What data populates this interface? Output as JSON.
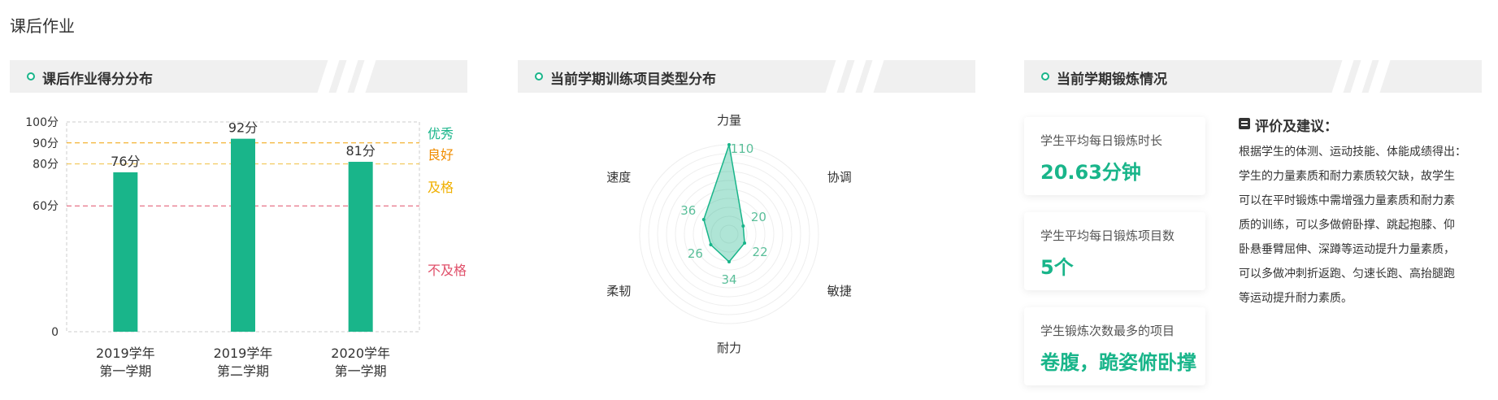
{
  "page": {
    "title": "课后作业"
  },
  "panels": [
    {
      "title": "课后作业得分分布"
    },
    {
      "title": "当前学期训练项目类型分布"
    },
    {
      "title": "当前学期锻炼情况"
    }
  ],
  "colors": {
    "primary": "#19b58a",
    "excellent": "#19b58a",
    "good": "#f08c00",
    "pass": "#f0b000",
    "fail": "#e0506a"
  },
  "chart_data": [
    {
      "type": "bar",
      "categories": [
        [
          "2019学年",
          "第一学期"
        ],
        [
          "2019学年",
          "第二学期"
        ],
        [
          "2020学年",
          "第一学期"
        ]
      ],
      "values": [
        76,
        92,
        81
      ],
      "value_labels": [
        "76分",
        "92分",
        "81分"
      ],
      "ylim": [
        0,
        100
      ],
      "yticks": [
        0,
        60,
        80,
        90,
        100
      ],
      "ytick_labels": [
        "0",
        "60分",
        "80分",
        "90分",
        "100分"
      ],
      "thresholds": [
        {
          "value": 90,
          "color": "#f0a000"
        },
        {
          "value": 80,
          "color": "#f0c040"
        },
        {
          "value": 60,
          "color": "#e0506a"
        }
      ],
      "grade_labels": [
        {
          "label": "优秀",
          "color": "#19b58a"
        },
        {
          "label": "良好",
          "color": "#f08c00"
        },
        {
          "label": "及格",
          "color": "#f0b000"
        },
        {
          "label": "不及格",
          "color": "#e0506a"
        }
      ]
    },
    {
      "type": "radar",
      "axes": [
        "力量",
        "协调",
        "敏捷",
        "耐力",
        "柔韧",
        "速度"
      ],
      "values": [
        110,
        20,
        22,
        34,
        26,
        36
      ],
      "max": 110
    }
  ],
  "stats": [
    {
      "label": "学生平均每日锻炼时长",
      "value": "20.63分钟"
    },
    {
      "label": "学生平均每日锻炼项目数",
      "value": "5个"
    },
    {
      "label": "学生锻炼次数最多的项目",
      "value": "卷腹，跪姿俯卧撑"
    }
  ],
  "advice": {
    "title": "评价及建议：",
    "lines": [
      "根据学生的体测、运动技能、体能成绩得出：",
      "学生的力量素质和耐力素质较欠缺，故学生",
      "可以在平时锻炼中需增强力量素质和耐力素",
      "质的训练，可以多做俯卧撑、跳起抱膝、仰",
      "卧悬垂臂屈伸、深蹲等运动提升力量素质，",
      "可以多做冲刺折返跑、匀速长跑、高抬腿跑",
      "等运动提升耐力素质。"
    ]
  }
}
